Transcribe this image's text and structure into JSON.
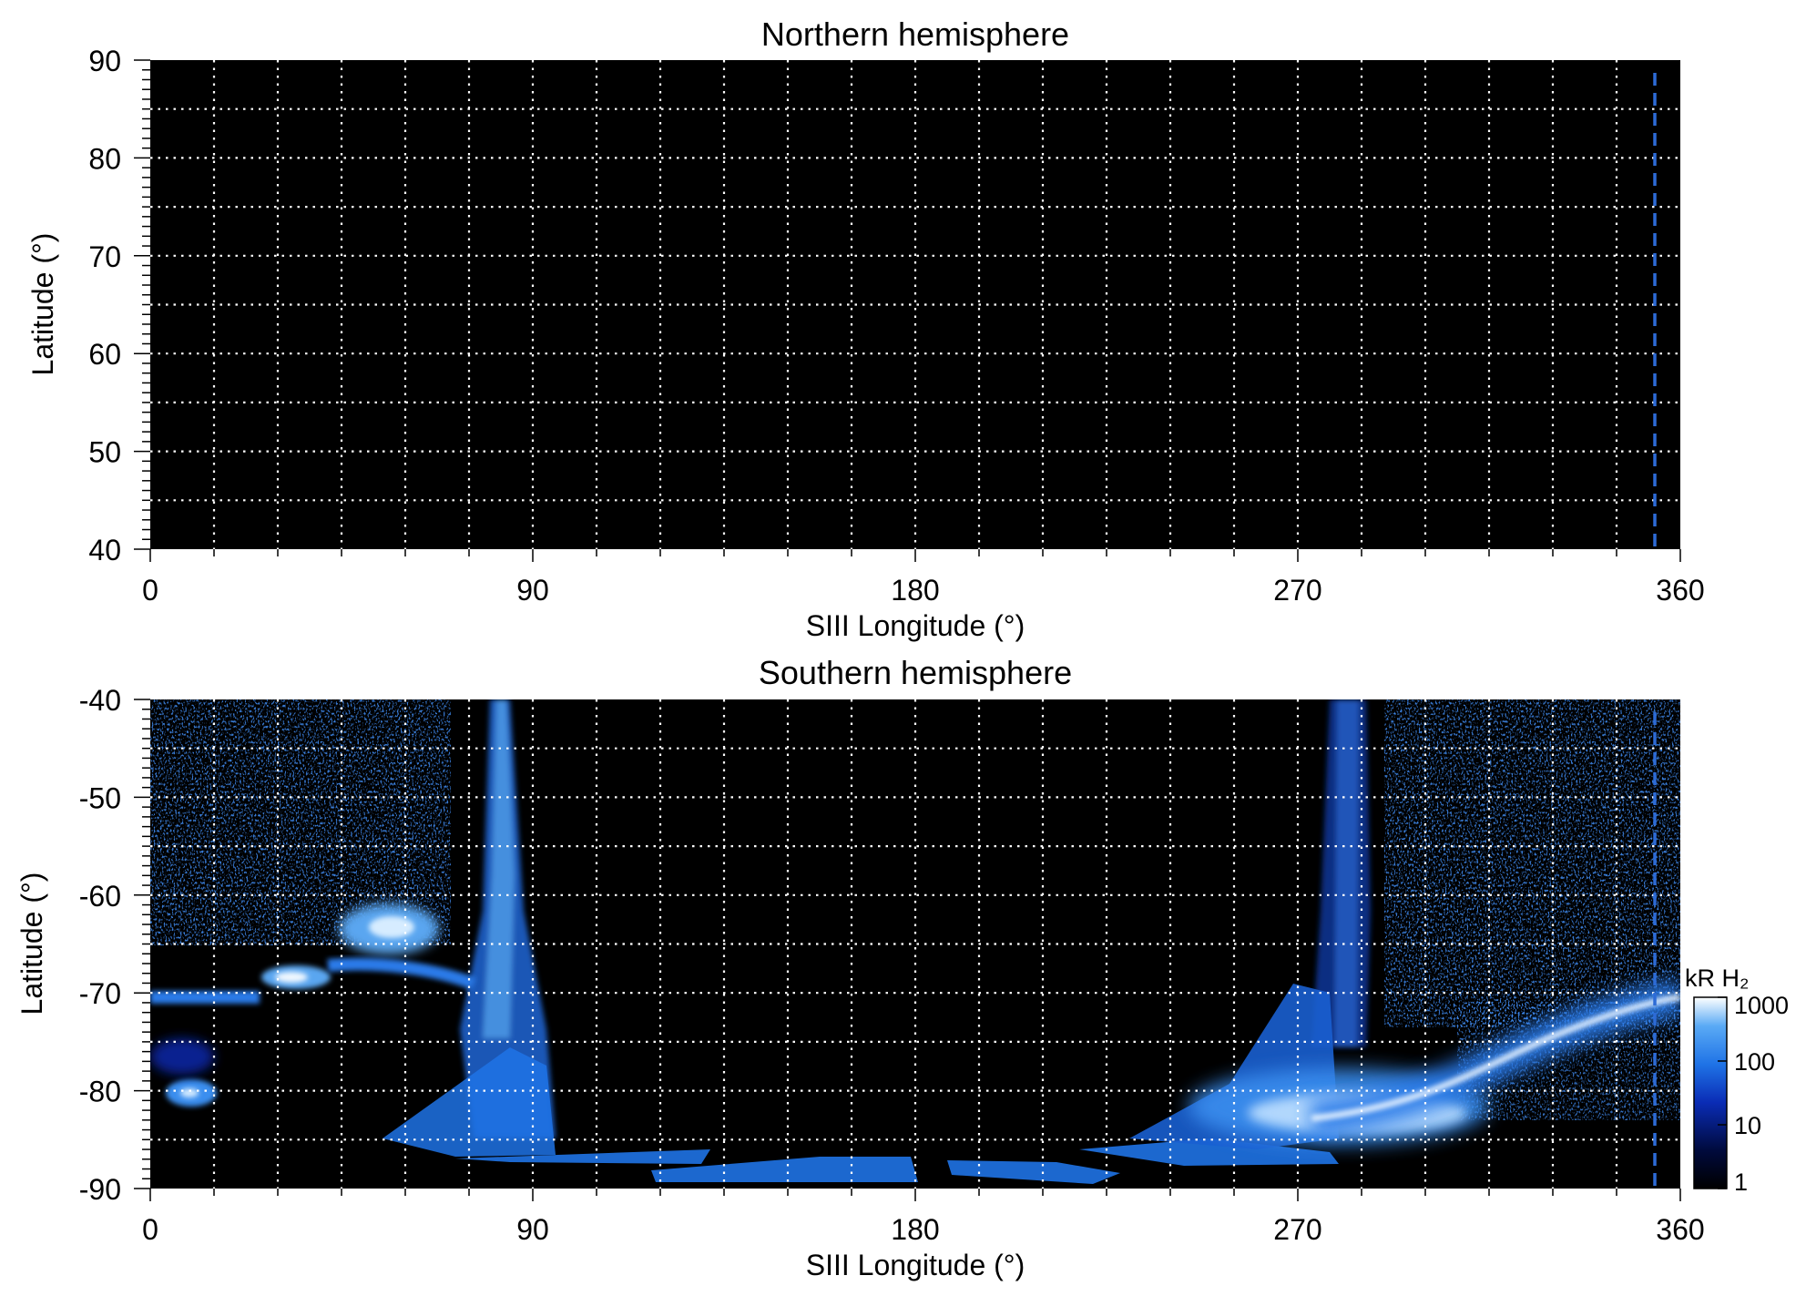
{
  "chart_data": [
    {
      "type": "heatmap",
      "title": "Northern hemisphere",
      "xlabel": "SIII Longitude (°)",
      "ylabel": "Latitude (°)",
      "xlim": [
        0,
        360
      ],
      "ylim": [
        40,
        90
      ],
      "xticks": [
        0,
        90,
        180,
        270,
        360
      ],
      "yticks": [
        40,
        50,
        60,
        70,
        80,
        90
      ],
      "grid": true,
      "grid_x_step": 15,
      "grid_y_step": 5,
      "background_color": "#000000",
      "reference_longitude": 354,
      "reference_line_color": "#2d6bd6",
      "emission": []
    },
    {
      "type": "heatmap",
      "title": "Southern hemisphere",
      "xlabel": "SIII Longitude (°)",
      "ylabel": "Latitude (°)",
      "xlim": [
        0,
        360
      ],
      "ylim": [
        -90,
        -40
      ],
      "xticks": [
        0,
        90,
        180,
        270,
        360
      ],
      "yticks": [
        -90,
        -80,
        -70,
        -60,
        -50,
        -40
      ],
      "grid": true,
      "grid_x_step": 15,
      "grid_y_step": 5,
      "background_color": "#000000",
      "reference_longitude": 354,
      "reference_line_color": "#2d6bd6",
      "emission": [
        {
          "feature": "main oval arc",
          "points": [
            [
              270,
              -81
            ],
            [
              290,
              -81
            ],
            [
              310,
              -79
            ],
            [
              330,
              -77
            ],
            [
              350,
              -74
            ],
            [
              360,
              -72
            ]
          ],
          "level_kR": 1000
        },
        {
          "feature": "bright region",
          "lon": [
            262,
            300
          ],
          "lat": [
            -86,
            -80
          ],
          "level_kR": 600
        },
        {
          "feature": "vertical band",
          "lon": [
            276,
            286
          ],
          "lat": [
            -86,
            -40
          ],
          "level_kR": 60
        },
        {
          "feature": "vertical band",
          "lon": [
            80,
            88
          ],
          "lat": [
            -88,
            -40
          ],
          "level_kR": 80
        },
        {
          "feature": "blob",
          "lon": 55,
          "lat": -63,
          "level_kR": 400
        },
        {
          "feature": "blob",
          "lon": 34,
          "lat": -68,
          "level_kR": 500
        },
        {
          "feature": "blob",
          "lon": 8,
          "lat": -81,
          "level_kR": 300
        },
        {
          "feature": "band",
          "lon": [
            0,
            20
          ],
          "lat": [
            -71,
            -69
          ],
          "level_kR": 200
        },
        {
          "feature": "noise region",
          "lon": [
            0,
            70
          ],
          "lat": [
            -65,
            -40
          ],
          "level_kR": 5
        },
        {
          "feature": "noise region",
          "lon": [
            290,
            360
          ],
          "lat": [
            -72,
            -40
          ],
          "level_kR": 5
        },
        {
          "feature": "projection fan",
          "lon": [
            55,
            130
          ],
          "lat": [
            -88,
            -84
          ],
          "level_kR": 150
        },
        {
          "feature": "projection fan",
          "lon": [
            125,
            230
          ],
          "lat": [
            -90,
            -87
          ],
          "level_kR": 150
        },
        {
          "feature": "projection fan",
          "lon": [
            220,
            290
          ],
          "lat": [
            -88,
            -84
          ],
          "level_kR": 150
        }
      ],
      "colorbar": {
        "label": "kR H₂",
        "scale": "log",
        "range": [
          1,
          1000
        ],
        "ticks": [
          "1",
          "10",
          "100",
          "1000"
        ],
        "colors": [
          "#000000",
          "#000a3d",
          "#0a2cb5",
          "#1f73e6",
          "#5aaaf5",
          "#ffffff"
        ]
      }
    }
  ]
}
